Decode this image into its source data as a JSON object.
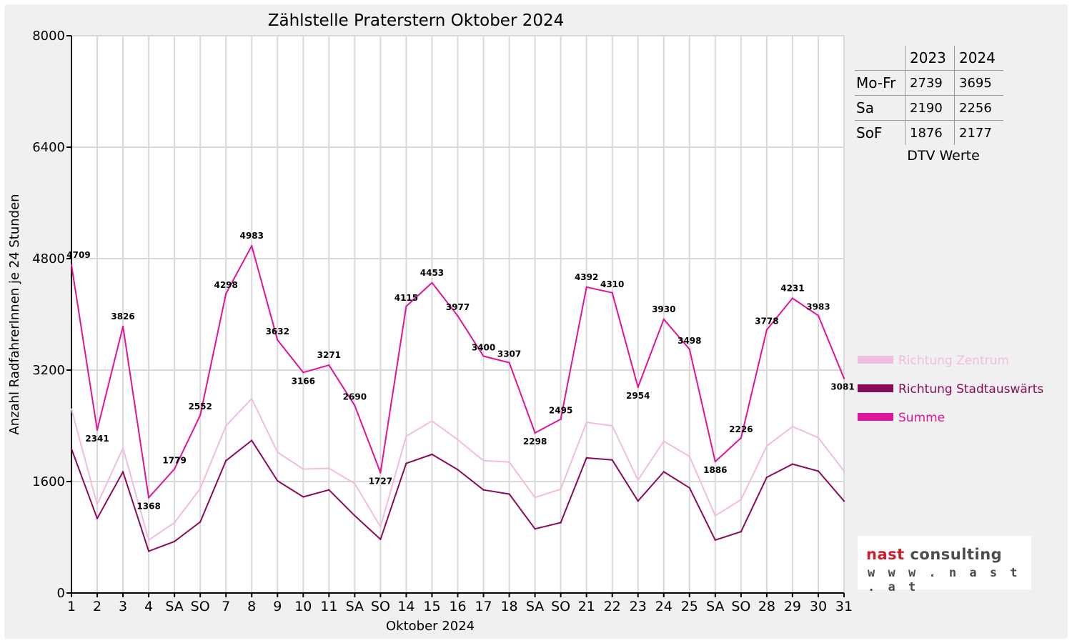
{
  "chart_data": {
    "type": "line",
    "title": "Zählstelle Praterstern Oktober 2024",
    "xlabel": "Oktober 2024",
    "ylabel": "Anzahl RadfahrerInnen je 24 Stunden",
    "ylim": [
      0,
      8000
    ],
    "yticks": [
      0,
      1600,
      3200,
      4800,
      6400,
      8000
    ],
    "grid": true,
    "legend_position": "right",
    "categories": [
      "1",
      "2",
      "3",
      "4",
      "SA",
      "SO",
      "7",
      "8",
      "9",
      "10",
      "11",
      "SA",
      "SO",
      "14",
      "15",
      "16",
      "17",
      "18",
      "SA",
      "SO",
      "21",
      "22",
      "23",
      "24",
      "25",
      "SA",
      "SO",
      "28",
      "29",
      "30",
      "31"
    ],
    "highlight_categories": [
      5,
      12,
      19,
      26
    ],
    "series": [
      {
        "name": "Richtung Zentrum",
        "color": "#f0bde0",
        "width": 2,
        "values": [
          2640,
          1270,
          2080,
          760,
          1010,
          1500,
          2400,
          2790,
          2020,
          1780,
          1790,
          1570,
          950,
          2250,
          2470,
          2200,
          1900,
          1880,
          1370,
          1490,
          2450,
          2400,
          1620,
          2180,
          1960,
          1110,
          1340,
          2110,
          2390,
          2230,
          1750
        ]
      },
      {
        "name": "Richtung Stadtauswärts",
        "color": "#8a0a5a",
        "width": 2,
        "values": [
          2070,
          1070,
          1740,
          600,
          740,
          1020,
          1900,
          2190,
          1610,
          1380,
          1480,
          1110,
          770,
          1860,
          1990,
          1770,
          1480,
          1420,
          920,
          1010,
          1940,
          1910,
          1320,
          1740,
          1510,
          760,
          880,
          1660,
          1850,
          1750,
          1320
        ]
      },
      {
        "name": "Summe",
        "color": "#e0149a",
        "width": 2,
        "values": [
          4709,
          2341,
          3826,
          1368,
          1779,
          2552,
          4298,
          4983,
          3632,
          3166,
          3271,
          2690,
          1727,
          4115,
          4453,
          3977,
          3400,
          3307,
          2298,
          2495,
          4392,
          4310,
          2954,
          3930,
          3498,
          1886,
          2226,
          3778,
          4231,
          3983,
          3081
        ]
      }
    ],
    "data_labels": [
      "4709",
      "2341",
      "3826",
      "1368",
      "1779",
      "2552",
      "4298",
      "4983",
      "3632",
      "3166",
      "3271",
      "2690",
      "1727",
      "4115",
      "4453",
      "3977",
      "3400",
      "3307",
      "2298",
      "2495",
      "4392",
      "4310",
      "2954",
      "3930",
      "3498",
      "1886",
      "2226",
      "3778",
      "4231",
      "3983",
      "3081"
    ]
  },
  "dtv": {
    "headers": [
      "2023",
      "2024"
    ],
    "rows": [
      {
        "label": "Mo-Fr",
        "v2023": "2739",
        "v2024": "3695"
      },
      {
        "label": "Sa",
        "v2023": "2190",
        "v2024": "2256"
      },
      {
        "label": "SoF",
        "v2023": "1876",
        "v2024": "2177"
      }
    ],
    "caption": "DTV Werte"
  },
  "logo": {
    "word1": "nast",
    "word2": "consulting",
    "url": "w w w . n a s t . a t"
  },
  "colors": {
    "sunday_label": "#ff0000",
    "background": "#f0f0f0",
    "plot_background": "#ffffff",
    "grid": "#d9d9d9"
  }
}
